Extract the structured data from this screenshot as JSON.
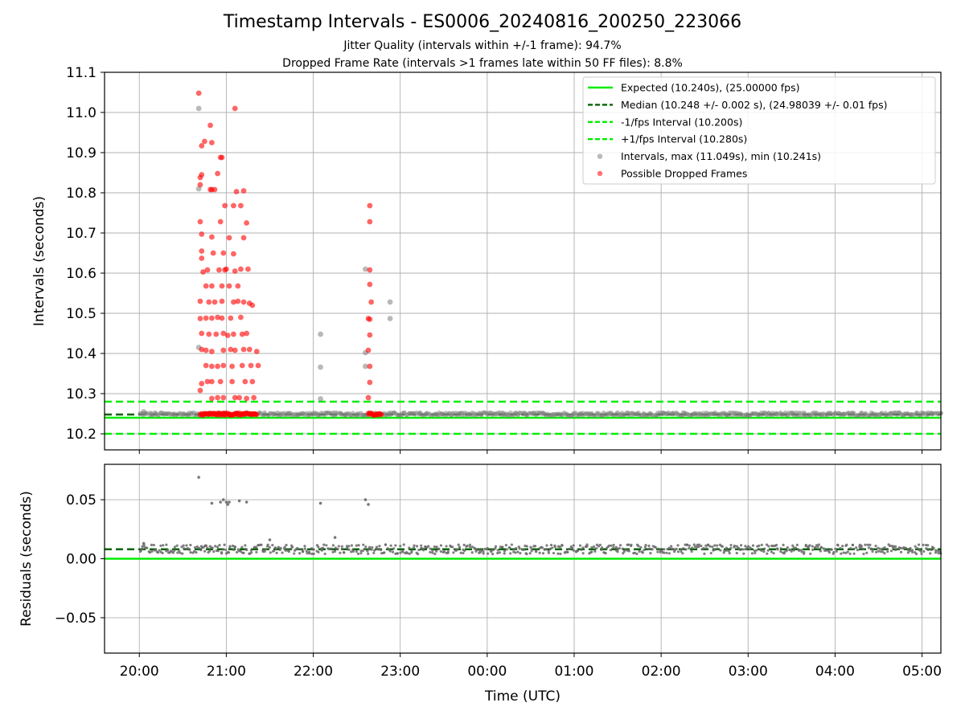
{
  "chart_data": [
    {
      "type": "scatter",
      "title": "Timestamp Intervals - ES0006_20240816_200250_223066",
      "subtitle_lines": [
        "Jitter Quality (intervals within +/-1 frame): 94.7%",
        "Dropped Frame Rate (intervals >1 frames late within 50 FF files): 8.8%"
      ],
      "xlabel": "",
      "ylabel": "Intervals (seconds)",
      "x_range": [
        "19:36",
        "05:13"
      ],
      "ylim": [
        10.16,
        11.1
      ],
      "yticks": [
        "10.2",
        "10.3",
        "10.4",
        "10.5",
        "10.6",
        "10.7",
        "10.8",
        "10.9",
        "11.0",
        "11.1"
      ],
      "grid": true,
      "legend_position": "top-right",
      "reference_lines": [
        {
          "name": "Expected (10.240s), (25.00000 fps)",
          "y": 10.24,
          "style": "solid",
          "color": "#00ee00"
        },
        {
          "name": "Median (10.248 +/- 0.002 s), (24.98039 +/- 0.01 fps)",
          "y": 10.248,
          "style": "dashed",
          "color": "#006400"
        },
        {
          "name": "-1/fps Interval (10.200s)",
          "y": 10.2,
          "style": "dashed",
          "color": "#00ee00"
        },
        {
          "name": "+1/fps Interval (10.280s)",
          "y": 10.28,
          "style": "dashed",
          "color": "#00ee00"
        }
      ],
      "series": [
        {
          "name": "Intervals, max (11.049s), min (10.241s)",
          "color": "#808080",
          "band": {
            "x_start": "20:00",
            "x_end": "05:13",
            "y_center": 10.249,
            "y_spread": 0.004
          },
          "points": [
            [
              "20:03",
              10.255
            ],
            [
              "20:41",
              11.01
            ],
            [
              "20:41",
              10.81
            ],
            [
              "20:41",
              10.415
            ],
            [
              "22:05",
              10.448
            ],
            [
              "22:05",
              10.366
            ],
            [
              "22:05",
              10.287
            ],
            [
              "22:36",
              10.61
            ],
            [
              "22:36",
              10.402
            ],
            [
              "22:36",
              10.368
            ],
            [
              "22:53",
              10.528
            ],
            [
              "22:53",
              10.487
            ]
          ]
        },
        {
          "name": "Possible Dropped Frames",
          "color": "#ff0000",
          "points": [
            [
              "20:41",
              11.048
            ],
            [
              "20:42",
              10.838
            ],
            [
              "20:42",
              10.82
            ],
            [
              "20:42",
              10.728
            ],
            [
              "20:43",
              10.917
            ],
            [
              "20:43",
              10.845
            ],
            [
              "20:43",
              10.697
            ],
            [
              "20:43",
              10.655
            ],
            [
              "20:43",
              10.637
            ],
            [
              "20:44",
              10.603
            ],
            [
              "20:42",
              10.53
            ],
            [
              "20:42",
              10.487
            ],
            [
              "20:43",
              10.45
            ],
            [
              "20:43",
              10.41
            ],
            [
              "20:43",
              10.325
            ],
            [
              "20:42",
              10.308
            ],
            [
              "20:45",
              10.928
            ],
            [
              "20:46",
              10.568
            ],
            [
              "20:46",
              10.488
            ],
            [
              "20:46",
              10.408
            ],
            [
              "20:46",
              10.37
            ],
            [
              "20:47",
              10.33
            ],
            [
              "20:47",
              10.608
            ],
            [
              "20:48",
              10.448
            ],
            [
              "20:48",
              10.528
            ],
            [
              "20:49",
              10.968
            ],
            [
              "20:49",
              10.808
            ],
            [
              "20:50",
              10.925
            ],
            [
              "20:50",
              10.808
            ],
            [
              "20:50",
              10.69
            ],
            [
              "20:50",
              10.568
            ],
            [
              "20:50",
              10.488
            ],
            [
              "20:50",
              10.405
            ],
            [
              "20:50",
              10.368
            ],
            [
              "20:50",
              10.33
            ],
            [
              "20:50",
              10.288
            ],
            [
              "20:51",
              10.65
            ],
            [
              "20:52",
              10.808
            ],
            [
              "20:52",
              10.528
            ],
            [
              "20:53",
              10.448
            ],
            [
              "20:54",
              10.848
            ],
            [
              "20:54",
              10.49
            ],
            [
              "20:54",
              10.368
            ],
            [
              "20:54",
              10.29
            ],
            [
              "20:55",
              10.608
            ],
            [
              "20:56",
              10.888
            ],
            [
              "20:56",
              10.728
            ],
            [
              "20:57",
              10.888
            ],
            [
              "20:57",
              10.568
            ],
            [
              "20:57",
              10.488
            ],
            [
              "20:58",
              10.408
            ],
            [
              "20:58",
              10.29
            ],
            [
              "20:59",
              10.768
            ],
            [
              "20:58",
              10.65
            ],
            [
              "20:57",
              10.53
            ],
            [
              "20:58",
              10.45
            ],
            [
              "20:58",
              10.37
            ],
            [
              "20:56",
              10.33
            ],
            [
              "20:59",
              10.608
            ],
            [
              "21:00",
              10.61
            ],
            [
              "21:01",
              10.445
            ],
            [
              "21:02",
              10.688
            ],
            [
              "21:02",
              10.568
            ],
            [
              "21:03",
              10.488
            ],
            [
              "21:03",
              10.41
            ],
            [
              "21:04",
              10.368
            ],
            [
              "21:04",
              10.33
            ],
            [
              "21:05",
              10.768
            ],
            [
              "21:05",
              10.648
            ],
            [
              "21:05",
              10.528
            ],
            [
              "21:05",
              10.448
            ],
            [
              "21:06",
              10.605
            ],
            [
              "21:06",
              10.408
            ],
            [
              "21:06",
              10.29
            ],
            [
              "21:06",
              11.01
            ],
            [
              "21:07",
              10.803
            ],
            [
              "21:08",
              10.568
            ],
            [
              "21:08",
              10.53
            ],
            [
              "21:09",
              10.29
            ],
            [
              "21:10",
              10.768
            ],
            [
              "21:10",
              10.61
            ],
            [
              "21:10",
              10.49
            ],
            [
              "21:11",
              10.448
            ],
            [
              "21:11",
              10.37
            ],
            [
              "21:12",
              10.805
            ],
            [
              "21:12",
              10.688
            ],
            [
              "21:12",
              10.528
            ],
            [
              "21:12",
              10.41
            ],
            [
              "21:13",
              10.33
            ],
            [
              "21:14",
              10.725
            ],
            [
              "21:14",
              10.45
            ],
            [
              "21:14",
              10.288
            ],
            [
              "21:15",
              10.61
            ],
            [
              "21:16",
              10.525
            ],
            [
              "21:16",
              10.41
            ],
            [
              "21:17",
              10.37
            ],
            [
              "21:18",
              10.52
            ],
            [
              "21:18",
              10.33
            ],
            [
              "21:19",
              10.29
            ],
            [
              "21:21",
              10.405
            ],
            [
              "21:22",
              10.37
            ],
            [
              "22:39",
              10.768
            ],
            [
              "22:39",
              10.728
            ],
            [
              "22:39",
              10.608
            ],
            [
              "22:39",
              10.572
            ],
            [
              "22:38",
              10.487
            ],
            [
              "22:39",
              10.485
            ],
            [
              "22:39",
              10.446
            ],
            [
              "22:40",
              10.528
            ],
            [
              "22:38",
              10.408
            ],
            [
              "22:39",
              10.368
            ],
            [
              "22:39",
              10.328
            ],
            [
              "22:38",
              10.29
            ]
          ],
          "band_clusters": [
            {
              "x_start": "20:42",
              "x_end": "21:21",
              "y": 10.249
            },
            {
              "x_start": "22:38",
              "x_end": "22:47",
              "y": 10.249
            }
          ]
        }
      ]
    },
    {
      "type": "scatter",
      "xlabel": "Time (UTC)",
      "ylabel": "Residuals (seconds)",
      "x_range": [
        "19:36",
        "05:13"
      ],
      "ylim": [
        -0.08,
        0.08
      ],
      "yticks": [
        "−0.05",
        "0.00",
        "0.05"
      ],
      "xticks": [
        "20:00",
        "21:00",
        "22:00",
        "23:00",
        "00:00",
        "01:00",
        "02:00",
        "03:00",
        "04:00",
        "05:00"
      ],
      "grid": true,
      "reference_lines": [
        {
          "y": 0.0,
          "style": "solid",
          "color": "#00ee00"
        },
        {
          "y": 0.008,
          "style": "dashed",
          "color": "#006400"
        }
      ],
      "series": [
        {
          "color": "#696969",
          "band": {
            "x_start": "20:00",
            "x_end": "05:13",
            "y_center": 0.008,
            "y_spread": 0.004
          },
          "points": [
            [
              "20:03",
              0.013
            ],
            [
              "20:41",
              0.069
            ],
            [
              "20:50",
              0.047
            ],
            [
              "20:56",
              0.048
            ],
            [
              "20:58",
              0.05
            ],
            [
              "21:00",
              0.048
            ],
            [
              "21:01",
              0.046
            ],
            [
              "21:02",
              0.048
            ],
            [
              "21:09",
              0.049
            ],
            [
              "21:14",
              0.048
            ],
            [
              "22:05",
              0.047
            ],
            [
              "22:36",
              0.05
            ],
            [
              "22:38",
              0.046
            ],
            [
              "22:15",
              0.018
            ],
            [
              "21:30",
              0.016
            ],
            [
              "20:46",
              0.011
            ]
          ]
        }
      ]
    }
  ]
}
